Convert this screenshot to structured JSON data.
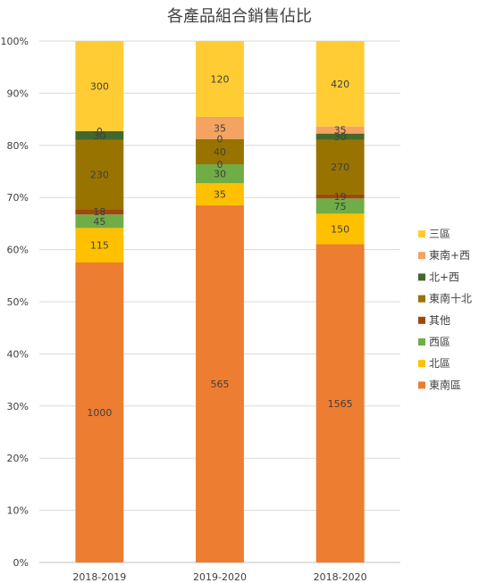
{
  "chart_data": {
    "type": "bar",
    "stacked": "percent",
    "title": "各產品組合銷售佔比",
    "categories": [
      "2018-2019",
      "2019-2020",
      "2018-2020"
    ],
    "ylim": [
      0,
      100
    ],
    "yticks": [
      "0%",
      "10%",
      "20%",
      "30%",
      "40%",
      "50%",
      "60%",
      "70%",
      "80%",
      "90%",
      "100%"
    ],
    "grid": true,
    "legend_position": "right",
    "series": [
      {
        "name": "東南區",
        "color": "#ED7D31",
        "values": [
          1000,
          565,
          1565
        ]
      },
      {
        "name": "北區",
        "color": "#FFC000",
        "values": [
          115,
          35,
          150
        ]
      },
      {
        "name": "西區",
        "color": "#70AD47",
        "values": [
          45,
          30,
          75
        ]
      },
      {
        "name": "其他",
        "color": "#9E480E",
        "values": [
          18,
          0,
          19
        ]
      },
      {
        "name": "東南十北",
        "color": "#997300",
        "values": [
          230,
          40,
          270
        ]
      },
      {
        "name": "北+西",
        "color": "#43682B",
        "values": [
          30,
          0,
          30
        ]
      },
      {
        "name": "東南+西",
        "color": "#F4A460",
        "values": [
          0,
          35,
          35
        ]
      },
      {
        "name": "三區",
        "color": "#FFCD33",
        "values": [
          300,
          120,
          420
        ]
      }
    ]
  }
}
